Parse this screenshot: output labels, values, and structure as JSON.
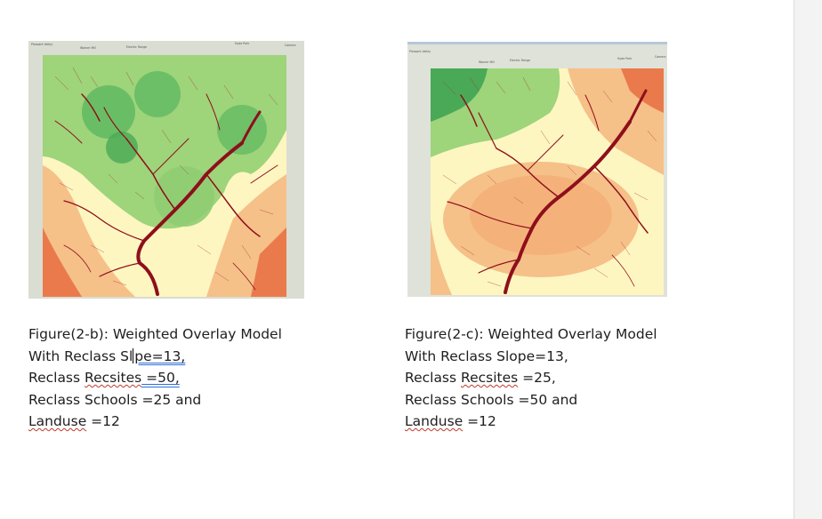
{
  "figures": [
    {
      "id": "fig-2b",
      "map_labels": [
        "Pleasant Valley",
        "Warner Mill",
        "Electric Range",
        "Hyde Park",
        "Camera"
      ],
      "caption": {
        "title": "Figure(2-b): Weighted Overlay Model",
        "line2_prefix": "With Reclass Sl",
        "line2_suffix": "pe=13,",
        "line3_word": "Recsites",
        "line3_prefix": "Reclass ",
        "line3_suffix": " =50,",
        "line4": "Reclass Schools =25 and",
        "line5_word": "Landuse",
        "line5_suffix": " =12"
      }
    },
    {
      "id": "fig-2c",
      "map_labels": [
        "Pleasant Valley",
        "Warner Mill",
        "Electric Range",
        "Hyde Park",
        "Camera"
      ],
      "caption": {
        "title": "Figure(2-c): Weighted Overlay Model",
        "line2": "With Reclass Slope=13,",
        "line3_word": "Recsites",
        "line3_prefix": "Reclass ",
        "line3_suffix": " =25,",
        "line4": "Reclass Schools =50 and",
        "line5_word": "Landuse",
        "line5_suffix": " =12"
      }
    }
  ],
  "colors": {
    "high_suitability": "#3aa655",
    "medium_high": "#9ed47a",
    "medium": "#fdf6c0",
    "medium_low": "#f6c089",
    "low": "#ea7a4c",
    "streams": "#8e0f1c",
    "basemap": "#dfe2d8"
  }
}
